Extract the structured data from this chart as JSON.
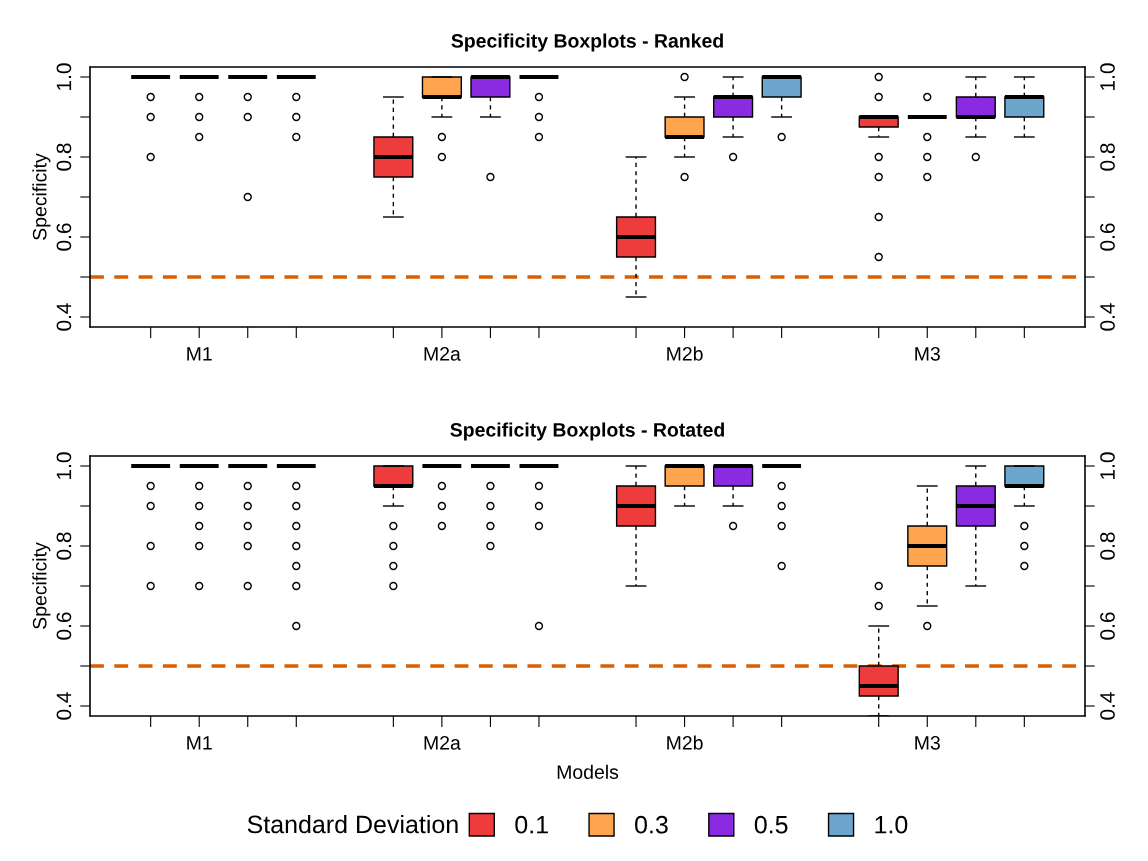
{
  "chart_data": [
    {
      "type": "box",
      "title": "Specificity Boxplots - Ranked",
      "ylabel": "Specificity",
      "categories": [
        "M1",
        "M2a",
        "M2b",
        "M3"
      ],
      "ylim": [
        0.375,
        1.025
      ],
      "yticks": [
        0.4,
        {
          "value": 0.5,
          "label": null
        },
        0.6,
        {
          "value": 0.7,
          "label": null
        },
        0.8,
        {
          "value": 0.9,
          "label": null
        },
        {
          "value": 1.0,
          "label": "1.0"
        }
      ],
      "y2lim": [
        0.375,
        1.025
      ],
      "y2ticks": [
        0.4,
        {
          "value": 0.5,
          "label": null
        },
        0.6,
        {
          "value": 0.7,
          "label": null
        },
        0.8,
        {
          "value": 0.9,
          "label": null
        },
        {
          "value": 1.0,
          "label": "1.0"
        }
      ],
      "ref_lines": [
        {
          "axis": "y",
          "value": 0.5,
          "color": "#d95f02",
          "line_style": "dashed"
        }
      ],
      "grid": false,
      "legend": false,
      "series": [
        {
          "color": "#ee3b3b",
          "boxes": [
            {
              "low": 1.0,
              "q1": 1.0,
              "median": 1.0,
              "q3": 1.0,
              "high": 1.0,
              "outliers": [
                0.95,
                0.9,
                0.8
              ]
            },
            {
              "low": 0.65,
              "q1": 0.75,
              "median": 0.8,
              "q3": 0.85,
              "high": 0.95
            },
            {
              "low": 0.45,
              "q1": 0.55,
              "median": 0.6,
              "q3": 0.65,
              "high": 0.8
            },
            {
              "low": 0.85,
              "q1": 0.875,
              "median": 0.9,
              "q3": 0.9,
              "high": 0.9,
              "outliers": [
                1.0,
                0.95,
                0.8,
                0.75,
                0.65,
                0.55
              ]
            }
          ]
        },
        {
          "color": "#ffa54f",
          "boxes": [
            {
              "low": 1.0,
              "q1": 1.0,
              "median": 1.0,
              "q3": 1.0,
              "high": 1.0,
              "outliers": [
                0.95,
                0.9,
                0.85
              ]
            },
            {
              "low": 0.9,
              "q1": 0.95,
              "median": 0.95,
              "q3": 1.0,
              "high": 1.0,
              "outliers": [
                0.85,
                0.8
              ]
            },
            {
              "low": 0.8,
              "q1": 0.85,
              "median": 0.85,
              "q3": 0.9,
              "high": 0.95,
              "outliers": [
                1.0,
                0.75
              ]
            },
            {
              "low": 0.9,
              "q1": 0.9,
              "median": 0.9,
              "q3": 0.9,
              "high": 0.9,
              "outliers": [
                0.95,
                0.85,
                0.8,
                0.75
              ]
            }
          ]
        },
        {
          "color": "#8a2be2",
          "boxes": [
            {
              "low": 1.0,
              "q1": 1.0,
              "median": 1.0,
              "q3": 1.0,
              "high": 1.0,
              "outliers": [
                0.95,
                0.9,
                0.7
              ]
            },
            {
              "low": 0.9,
              "q1": 0.95,
              "median": 1.0,
              "q3": 1.0,
              "high": 1.0,
              "outliers": [
                0.75
              ]
            },
            {
              "low": 0.85,
              "q1": 0.9,
              "median": 0.95,
              "q3": 0.95,
              "high": 1.0,
              "outliers": [
                0.8
              ]
            },
            {
              "low": 0.85,
              "q1": 0.9,
              "median": 0.9,
              "q3": 0.95,
              "high": 1.0,
              "outliers": [
                0.8
              ]
            }
          ]
        },
        {
          "color": "#6ca6cd",
          "boxes": [
            {
              "low": 1.0,
              "q1": 1.0,
              "median": 1.0,
              "q3": 1.0,
              "high": 1.0,
              "outliers": [
                0.95,
                0.9,
                0.85
              ]
            },
            {
              "low": 1.0,
              "q1": 1.0,
              "median": 1.0,
              "q3": 1.0,
              "high": 1.0,
              "outliers": [
                0.95,
                0.9,
                0.85
              ]
            },
            {
              "low": 0.9,
              "q1": 0.95,
              "median": 1.0,
              "q3": 1.0,
              "high": 1.0,
              "outliers": [
                0.85
              ]
            },
            {
              "low": 0.85,
              "q1": 0.9,
              "median": 0.95,
              "q3": 0.95,
              "high": 1.0
            }
          ]
        }
      ]
    },
    {
      "type": "box",
      "title": "Specificity Boxplots - Rotated",
      "ylabel": "Specificity",
      "xlabel": "Models",
      "categories": [
        "M1",
        "M2a",
        "M2b",
        "M3"
      ],
      "ylim": [
        0.375,
        1.025
      ],
      "yticks": [
        0.4,
        {
          "value": 0.5,
          "label": null
        },
        0.6,
        {
          "value": 0.7,
          "label": null
        },
        0.8,
        {
          "value": 0.9,
          "label": null
        },
        {
          "value": 1.0,
          "label": "1.0"
        }
      ],
      "y2lim": [
        0.375,
        1.025
      ],
      "y2ticks": [
        0.4,
        {
          "value": 0.5,
          "label": null
        },
        0.6,
        {
          "value": 0.7,
          "label": null
        },
        0.8,
        {
          "value": 0.9,
          "label": null
        },
        {
          "value": 1.0,
          "label": "1.0"
        }
      ],
      "ref_lines": [
        {
          "axis": "y",
          "value": 0.5,
          "color": "#d95f02",
          "line_style": "dashed"
        }
      ],
      "grid": false,
      "legend": "bottom",
      "legend_title": "Standard Deviation",
      "series": [
        {
          "name": "0.1",
          "color": "#ee3b3b",
          "boxes": [
            {
              "low": 1.0,
              "q1": 1.0,
              "median": 1.0,
              "q3": 1.0,
              "high": 1.0,
              "outliers": [
                0.95,
                0.9,
                0.8,
                0.7
              ]
            },
            {
              "low": 0.9,
              "q1": 0.95,
              "median": 0.95,
              "q3": 1.0,
              "high": 1.0,
              "outliers": [
                0.85,
                0.8,
                0.75,
                0.7
              ]
            },
            {
              "low": 0.7,
              "q1": 0.85,
              "median": 0.9,
              "q3": 0.95,
              "high": 1.0
            },
            {
              "low": 0.375,
              "q1": 0.425,
              "median": 0.45,
              "q3": 0.5,
              "high": 0.6,
              "outliers": [
                0.7,
                0.65
              ]
            }
          ]
        },
        {
          "name": "0.3",
          "color": "#ffa54f",
          "boxes": [
            {
              "low": 1.0,
              "q1": 1.0,
              "median": 1.0,
              "q3": 1.0,
              "high": 1.0,
              "outliers": [
                0.95,
                0.9,
                0.85,
                0.8,
                0.7
              ]
            },
            {
              "low": 1.0,
              "q1": 1.0,
              "median": 1.0,
              "q3": 1.0,
              "high": 1.0,
              "outliers": [
                0.95,
                0.9,
                0.85
              ]
            },
            {
              "low": 0.9,
              "q1": 0.95,
              "median": 1.0,
              "q3": 1.0,
              "high": 1.0
            },
            {
              "low": 0.65,
              "q1": 0.75,
              "median": 0.8,
              "q3": 0.85,
              "high": 0.95,
              "outliers": [
                0.6
              ]
            }
          ]
        },
        {
          "name": "0.5",
          "color": "#8a2be2",
          "boxes": [
            {
              "low": 1.0,
              "q1": 1.0,
              "median": 1.0,
              "q3": 1.0,
              "high": 1.0,
              "outliers": [
                0.95,
                0.9,
                0.85,
                0.8,
                0.7
              ]
            },
            {
              "low": 1.0,
              "q1": 1.0,
              "median": 1.0,
              "q3": 1.0,
              "high": 1.0,
              "outliers": [
                0.95,
                0.9,
                0.85,
                0.8
              ]
            },
            {
              "low": 0.9,
              "q1": 0.95,
              "median": 1.0,
              "q3": 1.0,
              "high": 1.0,
              "outliers": [
                0.85
              ]
            },
            {
              "low": 0.7,
              "q1": 0.85,
              "median": 0.9,
              "q3": 0.95,
              "high": 1.0
            }
          ]
        },
        {
          "name": "1.0",
          "color": "#6ca6cd",
          "boxes": [
            {
              "low": 1.0,
              "q1": 1.0,
              "median": 1.0,
              "q3": 1.0,
              "high": 1.0,
              "outliers": [
                0.95,
                0.9,
                0.85,
                0.8,
                0.75,
                0.7,
                0.6
              ]
            },
            {
              "low": 1.0,
              "q1": 1.0,
              "median": 1.0,
              "q3": 1.0,
              "high": 1.0,
              "outliers": [
                0.95,
                0.9,
                0.85,
                0.6
              ]
            },
            {
              "low": 1.0,
              "q1": 1.0,
              "median": 1.0,
              "q3": 1.0,
              "high": 1.0,
              "outliers": [
                0.95,
                0.9,
                0.85,
                0.75
              ]
            },
            {
              "low": 0.9,
              "q1": 0.95,
              "median": 0.95,
              "q3": 1.0,
              "high": 1.0,
              "outliers": [
                0.85,
                0.8,
                0.75
              ]
            }
          ]
        }
      ]
    }
  ]
}
